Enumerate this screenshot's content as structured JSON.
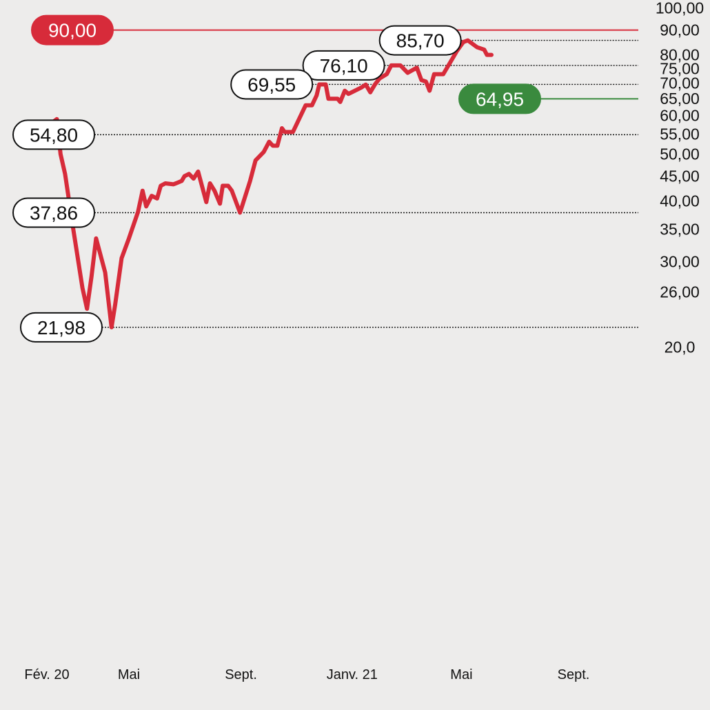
{
  "chart_data": {
    "type": "line",
    "scale": "log",
    "ylim": [
      18,
      105
    ],
    "y_ticks": [
      {
        "value": 100,
        "label": "100,00"
      },
      {
        "value": 90,
        "label": "90,00"
      },
      {
        "value": 80,
        "label": "80,00"
      },
      {
        "value": 75,
        "label": "75,00"
      },
      {
        "value": 70,
        "label": "70,00"
      },
      {
        "value": 65,
        "label": "65,00"
      },
      {
        "value": 60,
        "label": "60,00"
      },
      {
        "value": 55,
        "label": "55,00"
      },
      {
        "value": 50,
        "label": "50,00"
      },
      {
        "value": 45,
        "label": "45,00"
      },
      {
        "value": 40,
        "label": "40,00"
      },
      {
        "value": 35,
        "label": "35,00"
      },
      {
        "value": 30,
        "label": "30,00"
      },
      {
        "value": 26,
        "label": "26,00"
      },
      {
        "value": 20,
        "label": "20,0"
      }
    ],
    "x_ticks": [
      {
        "date": "2020-02-01",
        "label": "Fév. 20"
      },
      {
        "date": "2020-05-01",
        "label": "Mai"
      },
      {
        "date": "2020-09-01",
        "label": "Sept."
      },
      {
        "date": "2021-01-01",
        "label": "Janv. 21"
      },
      {
        "date": "2021-05-01",
        "label": "Mai"
      },
      {
        "date": "2021-09-01",
        "label": "Sept."
      }
    ],
    "series": [
      {
        "color": "#d72b3a",
        "points": [
          [
            "2020-02-01",
            55.0
          ],
          [
            "2020-02-04",
            57.5
          ],
          [
            "2020-02-12",
            59.0
          ],
          [
            "2020-02-16",
            50.0
          ],
          [
            "2020-02-21",
            45.5
          ],
          [
            "2020-03-01",
            35.0
          ],
          [
            "2020-03-11",
            26.5
          ],
          [
            "2020-03-16",
            24.0
          ],
          [
            "2020-03-21",
            28.0
          ],
          [
            "2020-03-26",
            33.5
          ],
          [
            "2020-04-05",
            28.5
          ],
          [
            "2020-04-12",
            21.98
          ],
          [
            "2020-04-16",
            24.5
          ],
          [
            "2020-04-23",
            30.5
          ],
          [
            "2020-05-01",
            33.5
          ],
          [
            "2020-05-11",
            38.0
          ],
          [
            "2020-05-16",
            42.0
          ],
          [
            "2020-05-20",
            39.0
          ],
          [
            "2020-05-26",
            41.0
          ],
          [
            "2020-06-01",
            40.5
          ],
          [
            "2020-06-05",
            43.0
          ],
          [
            "2020-06-10",
            43.5
          ],
          [
            "2020-06-19",
            43.3
          ],
          [
            "2020-06-28",
            44.0
          ],
          [
            "2020-07-01",
            45.0
          ],
          [
            "2020-07-06",
            45.5
          ],
          [
            "2020-07-11",
            44.5
          ],
          [
            "2020-07-16",
            46.0
          ],
          [
            "2020-07-25",
            39.8
          ],
          [
            "2020-07-29",
            43.5
          ],
          [
            "2020-08-03",
            42.0
          ],
          [
            "2020-08-09",
            39.5
          ],
          [
            "2020-08-12",
            43.0
          ],
          [
            "2020-08-18",
            43.0
          ],
          [
            "2020-08-22",
            42.0
          ],
          [
            "2020-08-31",
            37.86
          ],
          [
            "2020-09-11",
            44.0
          ],
          [
            "2020-09-17",
            48.5
          ],
          [
            "2020-09-26",
            50.5
          ],
          [
            "2020-10-02",
            53.0
          ],
          [
            "2020-10-06",
            52.0
          ],
          [
            "2020-10-11",
            52.0
          ],
          [
            "2020-10-16",
            56.5
          ],
          [
            "2020-10-19",
            55.5
          ],
          [
            "2020-10-28",
            55.5
          ],
          [
            "2020-11-11",
            63.0
          ],
          [
            "2020-11-18",
            63.0
          ],
          [
            "2020-11-23",
            66.0
          ],
          [
            "2020-11-26",
            69.55
          ],
          [
            "2020-12-03",
            69.55
          ],
          [
            "2020-12-06",
            65.0
          ],
          [
            "2020-12-16",
            65.0
          ],
          [
            "2020-12-19",
            64.0
          ],
          [
            "2020-12-24",
            67.5
          ],
          [
            "2020-12-28",
            66.5
          ],
          [
            "2021-01-11",
            68.5
          ],
          [
            "2021-01-16",
            69.5
          ],
          [
            "2021-01-21",
            67.0
          ],
          [
            "2021-01-26",
            69.5
          ],
          [
            "2021-01-31",
            71.5
          ],
          [
            "2021-02-08",
            73.0
          ],
          [
            "2021-02-13",
            76.1
          ],
          [
            "2021-02-23",
            76.1
          ],
          [
            "2021-03-03",
            73.5
          ],
          [
            "2021-03-13",
            75.3
          ],
          [
            "2021-03-18",
            71.0
          ],
          [
            "2021-03-23",
            70.5
          ],
          [
            "2021-03-27",
            67.5
          ],
          [
            "2021-04-01",
            73.0
          ],
          [
            "2021-04-11",
            73.0
          ],
          [
            "2021-04-21",
            78.5
          ],
          [
            "2021-04-26",
            81.5
          ],
          [
            "2021-05-03",
            85.0
          ],
          [
            "2021-05-08",
            85.7
          ],
          [
            "2021-05-18",
            83.0
          ],
          [
            "2021-05-26",
            82.0
          ],
          [
            "2021-05-29",
            80.0
          ],
          [
            "2021-06-03",
            80.0
          ]
        ]
      }
    ],
    "reference_lines": [
      {
        "value": 90.0,
        "label": "90,00",
        "style": "solid",
        "color": "#d72b3a",
        "label_style": "filled"
      },
      {
        "value": 85.7,
        "label": "85,70",
        "style": "dotted",
        "color": "#111111",
        "label_style": "outlined"
      },
      {
        "value": 76.1,
        "label": "76,10",
        "style": "dotted",
        "color": "#111111",
        "label_style": "outlined"
      },
      {
        "value": 69.55,
        "label": "69,55",
        "style": "dotted",
        "color": "#111111",
        "label_style": "outlined"
      },
      {
        "value": 64.95,
        "label": "64,95",
        "style": "solid",
        "color": "#3a8a3e",
        "label_style": "filled"
      },
      {
        "value": 54.8,
        "label": "54,80",
        "style": "dotted",
        "color": "#111111",
        "label_style": "outlined"
      },
      {
        "value": 37.86,
        "label": "37,86",
        "style": "dotted",
        "color": "#111111",
        "label_style": "outlined"
      },
      {
        "value": 21.98,
        "label": "21,98",
        "style": "dotted",
        "color": "#111111",
        "label_style": "outlined"
      }
    ],
    "grid": false,
    "y_axis_position": "right"
  }
}
